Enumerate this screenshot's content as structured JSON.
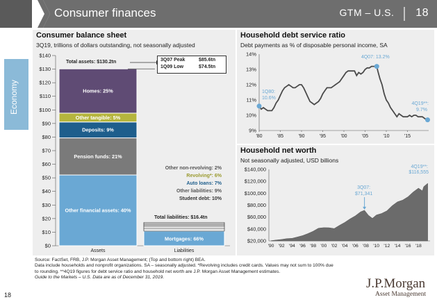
{
  "header": {
    "title": "Consumer finances",
    "source_tag": "GTM – U.S.",
    "page_number": "18"
  },
  "sidebar": {
    "label": "Economy"
  },
  "balance_sheet": {
    "title": "Consumer balance sheet",
    "subtitle": "3Q19, trillions of dollars outstanding, not seasonally adjusted",
    "total_assets": "Total assets: $130.2tn",
    "peak_label": "3Q07 Peak",
    "peak_value": "$85.6tn",
    "low_label": "1Q09 Low",
    "low_value": "$74.5tn",
    "total_liabilities": "Total liabilities: $16.4tn"
  },
  "debt_service": {
    "title": "Household debt service ratio",
    "subtitle": "Debt payments as % of disposable personal income, SA",
    "ann_1q80": [
      "1Q80:",
      "10.6%"
    ],
    "ann_4q07": "4Q07: 13.2%",
    "ann_4q19": [
      "4Q19**:",
      "9.7%"
    ]
  },
  "net_worth": {
    "title": "Household net worth",
    "subtitle": "Not seasonally adjusted, USD billions",
    "ann_3q07": [
      "3Q07:",
      "$71,341"
    ],
    "ann_4q19": [
      "4Q19**:",
      "$116,555"
    ]
  },
  "footer": {
    "line1": "Source: FactSet, FRB, J.P. Morgan Asset Management; (Top and bottom right) BEA.",
    "line2": "Data include households and nonprofit organizations. SA – seasonally adjusted. *Revolving includes credit cards. Values may not sum to 100% due",
    "line3": "to rounding. **4Q19 figures for debt service ratio and household net worth are J.P. Morgan Asset Management estimates.",
    "line4": "Guide to the Markets – U.S. Data are as of December 31, 2019.",
    "page": "18"
  },
  "brand": {
    "name": "J.P.Morgan",
    "sub": "Asset Management"
  },
  "colors": {
    "header_gray": "#6e6e6e",
    "sidebar_blue": "#8bbad8",
    "homes": "#5f4b74",
    "other_tangible": "#b5b53d",
    "deposits": "#1e5e8c",
    "pension": "#7a7a7a",
    "other_financial": "#6aa8d4",
    "mortgages": "#6aa8d4",
    "debt_line": "#4a4a4a",
    "annotation_blue": "#6aa8d4",
    "area_gray": "#6b6b6b"
  },
  "chart_data": [
    {
      "type": "bar",
      "title": "Consumer balance sheet",
      "subtitle": "3Q19, trillions of dollars outstanding, not seasonally adjusted",
      "categories": [
        "Assets",
        "Liabilities"
      ],
      "ylim": [
        0,
        140
      ],
      "yticks": [
        "$0",
        "$10",
        "$20",
        "$30",
        "$40",
        "$50",
        "$60",
        "$70",
        "$80",
        "$90",
        "$100",
        "$110",
        "$120",
        "$130",
        "$140"
      ],
      "assets": [
        {
          "label": "Other financial assets: 40%",
          "value": 52.1
        },
        {
          "label": "Pension funds: 21%",
          "value": 27.3
        },
        {
          "label": "Deposits: 9%",
          "value": 11.7
        },
        {
          "label": "Other tangible: 5%",
          "value": 6.5
        },
        {
          "label": "Homes: 25%",
          "value": 32.6
        }
      ],
      "liabilities": [
        {
          "label": "Mortgages: 66%",
          "value": 10.8
        },
        {
          "label": "Student debt: 10%",
          "value": 1.6
        },
        {
          "label": "Other liabilities: 9%",
          "value": 1.5
        },
        {
          "label": "Auto loans: 7%",
          "value": 1.2
        },
        {
          "label": "Revolving*: 6%",
          "value": 1.0
        },
        {
          "label": "Other non-revolving: 2%",
          "value": 0.3
        }
      ]
    },
    {
      "type": "line",
      "title": "Household debt service ratio",
      "subtitle": "Debt payments as % of disposable personal income, SA",
      "ylim": [
        9,
        14
      ],
      "yticks": [
        "9%",
        "10%",
        "11%",
        "12%",
        "13%",
        "14%"
      ],
      "xticks": [
        "'80",
        "'85",
        "'90",
        "'95",
        "'00",
        "'05",
        "'10",
        "'15"
      ],
      "xlim": [
        1980,
        2020
      ],
      "x": [
        1980.0,
        1980.5,
        1981.0,
        1981.5,
        1982.0,
        1982.5,
        1983.0,
        1983.5,
        1984.0,
        1984.5,
        1985.0,
        1985.5,
        1986.0,
        1986.5,
        1987.0,
        1987.5,
        1988.0,
        1988.5,
        1989.0,
        1989.5,
        1990.0,
        1990.5,
        1991.0,
        1991.5,
        1992.0,
        1992.5,
        1993.0,
        1993.5,
        1994.0,
        1994.5,
        1995.0,
        1995.5,
        1996.0,
        1996.5,
        1997.0,
        1997.5,
        1998.0,
        1998.5,
        1999.0,
        1999.5,
        2000.0,
        2000.5,
        2001.0,
        2001.5,
        2002.0,
        2002.5,
        2003.0,
        2003.5,
        2004.0,
        2004.5,
        2005.0,
        2005.5,
        2006.0,
        2006.5,
        2007.0,
        2007.5,
        2007.75,
        2008.0,
        2008.5,
        2009.0,
        2009.5,
        2010.0,
        2010.5,
        2011.0,
        2011.5,
        2012.0,
        2012.5,
        2013.0,
        2013.5,
        2014.0,
        2014.5,
        2015.0,
        2015.5,
        2016.0,
        2016.5,
        2017.0,
        2017.5,
        2018.0,
        2018.5,
        2019.0,
        2019.5,
        2019.75
      ],
      "y": [
        10.6,
        10.4,
        10.5,
        10.4,
        10.3,
        10.3,
        10.3,
        10.5,
        10.8,
        11.0,
        11.3,
        11.6,
        11.8,
        11.9,
        12.0,
        11.9,
        11.8,
        11.8,
        11.9,
        12.0,
        12.0,
        11.8,
        11.5,
        11.2,
        10.9,
        10.8,
        10.7,
        10.8,
        10.9,
        11.1,
        11.4,
        11.6,
        11.8,
        11.8,
        11.8,
        11.9,
        12.0,
        12.1,
        12.2,
        12.4,
        12.6,
        12.8,
        12.9,
        12.9,
        12.9,
        12.9,
        12.6,
        12.8,
        12.7,
        12.8,
        13.0,
        13.1,
        13.1,
        13.2,
        13.2,
        13.2,
        13.2,
        12.9,
        12.4,
        12.0,
        11.4,
        11.0,
        10.8,
        10.5,
        10.3,
        10.1,
        9.9,
        10.1,
        10.0,
        9.9,
        9.9,
        9.9,
        10.0,
        9.9,
        10.0,
        10.0,
        9.9,
        9.9,
        9.9,
        9.8,
        9.7,
        9.7
      ],
      "annotations": [
        {
          "x": 1980.0,
          "y": 10.6,
          "label": "1Q80: 10.6%"
        },
        {
          "x": 2007.75,
          "y": 13.2,
          "label": "4Q07: 13.2%"
        },
        {
          "x": 2019.75,
          "y": 9.7,
          "label": "4Q19**: 9.7%"
        }
      ]
    },
    {
      "type": "area",
      "title": "Household net worth",
      "subtitle": "Not seasonally adjusted, USD billions",
      "ylim": [
        20000,
        140000
      ],
      "yticks": [
        "$20,000",
        "$40,000",
        "$60,000",
        "$80,000",
        "$100,000",
        "$120,000",
        "$140,000"
      ],
      "xticks": [
        "'90",
        "'92",
        "'94",
        "'96",
        "'98",
        "'00",
        "'02",
        "'04",
        "'06",
        "'08",
        "'10",
        "'12",
        "'14",
        "'16",
        "'18"
      ],
      "xlim": [
        1989.6,
        2020.2
      ],
      "x": [
        1990,
        1991,
        1992,
        1993,
        1994,
        1995,
        1996,
        1997,
        1998,
        1999,
        2000,
        2001,
        2002,
        2003,
        2004,
        2005,
        2006,
        2007.0,
        2007.75,
        2008.5,
        2009.25,
        2010,
        2011,
        2012,
        2013,
        2014,
        2015,
        2016,
        2017,
        2018,
        2018.75,
        2019.0,
        2019.75
      ],
      "y": [
        20300,
        21500,
        22500,
        23800,
        24300,
        26500,
        28900,
        32200,
        36200,
        41300,
        42200,
        42100,
        40700,
        46100,
        51000,
        56900,
        62000,
        68700,
        71341,
        63000,
        57900,
        63500,
        66000,
        70500,
        79000,
        85500,
        88500,
        94000,
        102000,
        108500,
        104000,
        111000,
        116555
      ],
      "annotations": [
        {
          "x": 2007.75,
          "y": 71341,
          "label": "3Q07: $71,341"
        },
        {
          "x": 2019.75,
          "y": 116555,
          "label": "4Q19**: $116,555"
        }
      ]
    }
  ]
}
